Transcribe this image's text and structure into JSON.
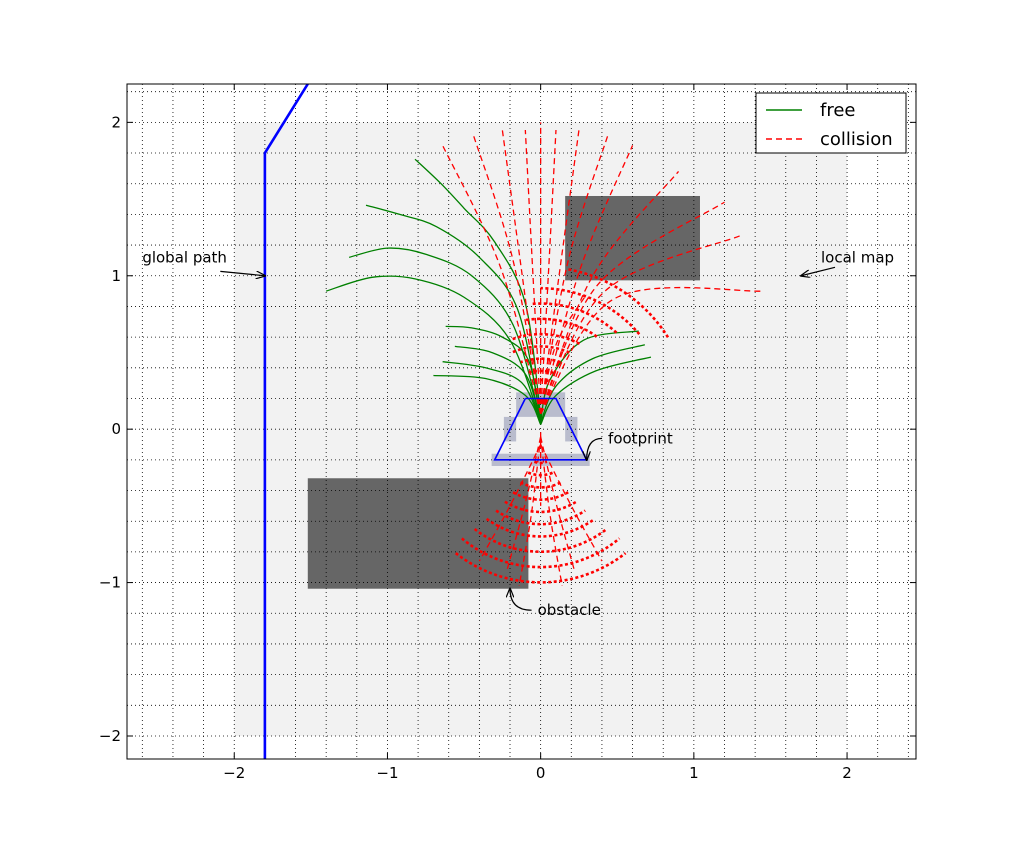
{
  "chart_data": {
    "type": "line",
    "title": "",
    "xlabel": "",
    "ylabel": "",
    "xlim": [
      -2.7,
      2.45
    ],
    "ylim": [
      -2.15,
      2.25
    ],
    "grid": true,
    "grid_style": "dotted",
    "minor_grid_step": 0.2,
    "xticks": [
      -2,
      -1,
      0,
      1,
      2
    ],
    "yticks": [
      -2,
      -1,
      0,
      1,
      2
    ],
    "xtick_labels": [
      "−2",
      "−1",
      "0",
      "1",
      "2"
    ],
    "ytick_labels": [
      "−2",
      "−1",
      "0",
      "1",
      "2"
    ],
    "legend": {
      "position": "top-right",
      "entries": [
        {
          "label": "free",
          "color": "#008000",
          "style": "solid"
        },
        {
          "label": "collision",
          "color": "#ff0000",
          "style": "dashed"
        }
      ]
    },
    "local_map": {
      "x": [
        -2.0,
        2.0
      ],
      "y": [
        -2.0,
        2.0
      ],
      "color": "#f2f2f2"
    },
    "obstacles": [
      {
        "x": [
          0.16,
          1.04
        ],
        "y": [
          0.97,
          1.52
        ],
        "color": "#666666"
      },
      {
        "x": [
          -1.52,
          -0.08
        ],
        "y": [
          -1.04,
          -0.32
        ],
        "color": "#666666"
      }
    ],
    "footprint_cells": [
      {
        "x": [
          -0.16,
          0.16
        ],
        "y": [
          0.08,
          0.24
        ]
      },
      {
        "x": [
          -0.24,
          -0.16
        ],
        "y": [
          -0.08,
          0.08
        ]
      },
      {
        "x": [
          0.16,
          0.24
        ],
        "y": [
          -0.08,
          0.08
        ]
      },
      {
        "x": [
          -0.32,
          0.32
        ],
        "y": [
          -0.24,
          -0.16
        ]
      }
    ],
    "footprint_color": "#b9bccd",
    "footprint": {
      "x": [
        -0.1,
        0.1,
        0.3,
        -0.3,
        -0.1
      ],
      "y": [
        0.2,
        0.2,
        -0.2,
        -0.2,
        0.2
      ],
      "color": "#0000ff"
    },
    "global_path": {
      "x": [
        -1.8,
        -1.8,
        -1.52
      ],
      "y": [
        -2.15,
        1.8,
        2.25
      ],
      "color": "#0000ff"
    },
    "annotations": [
      {
        "text": "global path",
        "text_xy": [
          -2.6,
          1.12
        ],
        "arrow_to": [
          -1.8,
          1.0
        ]
      },
      {
        "text": "local map",
        "text_xy": [
          1.83,
          1.12
        ],
        "arrow_to": [
          1.7,
          1.0
        ]
      },
      {
        "text": "footprint",
        "text_xy": [
          0.44,
          -0.06
        ],
        "arrow_to": [
          0.3,
          -0.2
        ]
      },
      {
        "text": "obstacle",
        "text_xy": [
          -0.02,
          -1.18
        ],
        "arrow_to": [
          -0.2,
          -1.04
        ]
      }
    ],
    "series": [
      {
        "name": "free",
        "color": "#008000",
        "style": "solid",
        "trajectories": [
          {
            "x": [
              0.0,
              -0.2,
              -0.5,
              -0.82,
              -1.1,
              -1.4
            ],
            "y": [
              0.05,
              0.58,
              0.86,
              0.98,
              0.99,
              0.9
            ]
          },
          {
            "x": [
              0.0,
              -0.18,
              -0.45,
              -0.75,
              -1.0,
              -1.25
            ],
            "y": [
              0.06,
              0.68,
              1.0,
              1.14,
              1.18,
              1.12
            ]
          },
          {
            "x": [
              0.0,
              -0.15,
              -0.4,
              -0.68,
              -0.92,
              -1.14
            ],
            "y": [
              0.07,
              0.78,
              1.12,
              1.32,
              1.4,
              1.46
            ]
          },
          {
            "x": [
              0.0,
              -0.1,
              -0.3,
              -0.5,
              -0.65,
              -0.82
            ],
            "y": [
              0.08,
              0.82,
              1.22,
              1.44,
              1.6,
              1.76
            ]
          },
          {
            "x": [
              0.0,
              -0.08,
              -0.25,
              -0.45,
              -0.62
            ],
            "y": [
              0.05,
              0.45,
              0.6,
              0.66,
              0.67
            ]
          },
          {
            "x": [
              0.0,
              -0.1,
              -0.32,
              -0.56
            ],
            "y": [
              0.04,
              0.36,
              0.5,
              0.54
            ]
          },
          {
            "x": [
              0.0,
              -0.12,
              -0.36,
              -0.64
            ],
            "y": [
              0.04,
              0.3,
              0.4,
              0.44
            ]
          },
          {
            "x": [
              0.0,
              -0.1,
              -0.36,
              -0.7
            ],
            "y": [
              0.03,
              0.22,
              0.33,
              0.35
            ]
          },
          {
            "x": [
              0.0,
              0.06,
              0.28,
              0.64
            ],
            "y": [
              0.05,
              0.32,
              0.58,
              0.64
            ]
          },
          {
            "x": [
              0.0,
              0.1,
              0.34,
              0.68
            ],
            "y": [
              0.04,
              0.28,
              0.46,
              0.55
            ]
          },
          {
            "x": [
              0.0,
              0.1,
              0.36,
              0.72
            ],
            "y": [
              0.03,
              0.22,
              0.38,
              0.47
            ]
          }
        ]
      },
      {
        "name": "collision",
        "color": "#ff0000",
        "style": "dashed",
        "trajectories": [
          {
            "x": [
              0.0,
              0.0
            ],
            "y": [
              0.1,
              2.0
            ]
          },
          {
            "x": [
              0.0,
              -0.05,
              -0.1
            ],
            "y": [
              0.1,
              1.0,
              1.95
            ]
          },
          {
            "x": [
              0.0,
              0.05,
              0.1
            ],
            "y": [
              0.1,
              1.0,
              1.95
            ]
          },
          {
            "x": [
              0.0,
              -0.12,
              -0.25
            ],
            "y": [
              0.1,
              1.0,
              1.95
            ]
          },
          {
            "x": [
              0.0,
              0.12,
              0.25
            ],
            "y": [
              0.1,
              1.0,
              1.95
            ]
          },
          {
            "x": [
              0.0,
              -0.18,
              -0.44
            ],
            "y": [
              0.1,
              1.1,
              1.92
            ]
          },
          {
            "x": [
              0.0,
              0.18,
              0.44
            ],
            "y": [
              0.1,
              1.1,
              1.92
            ]
          },
          {
            "x": [
              0.0,
              -0.26,
              -0.64
            ],
            "y": [
              0.1,
              1.05,
              1.85
            ]
          },
          {
            "x": [
              0.0,
              0.26,
              0.6
            ],
            "y": [
              0.1,
              1.05,
              1.85
            ]
          },
          {
            "x": [
              0.0,
              0.34,
              0.9
            ],
            "y": [
              0.1,
              1.0,
              1.68
            ]
          },
          {
            "x": [
              0.0,
              0.38,
              1.2
            ],
            "y": [
              0.1,
              0.95,
              1.48
            ]
          },
          {
            "x": [
              0.0,
              0.42,
              1.3
            ],
            "y": [
              0.1,
              0.9,
              1.26
            ]
          },
          {
            "x": [
              0.0,
              0.48,
              1.45
            ],
            "y": [
              0.1,
              0.85,
              0.9
            ]
          },
          {
            "x": [
              0.0,
              0.1,
              0.3
            ],
            "y": [
              0.1,
              0.55,
              0.88
            ]
          },
          {
            "x": [
              0.0,
              0.0
            ],
            "y": [
              -0.02,
              -0.5
            ]
          },
          {
            "x": [
              0.0,
              -0.1,
              -0.22
            ],
            "y": [
              -0.05,
              -0.48,
              -0.92
            ]
          },
          {
            "x": [
              0.0,
              0.1,
              0.22
            ],
            "y": [
              -0.05,
              -0.48,
              -0.92
            ]
          },
          {
            "x": [
              0.0,
              -0.2,
              -0.4
            ],
            "y": [
              -0.1,
              -0.5,
              -0.86
            ]
          },
          {
            "x": [
              0.0,
              0.2,
              0.4
            ],
            "y": [
              -0.1,
              -0.5,
              -0.86
            ]
          },
          {
            "x": [
              0.0,
              -0.06,
              -0.14
            ],
            "y": [
              -0.05,
              -0.55,
              -1.02
            ]
          },
          {
            "x": [
              0.0,
              0.06,
              0.14
            ],
            "y": [
              -0.05,
              -0.55,
              -1.02
            ]
          }
        ],
        "arcs": [
          {
            "cy": 0.08,
            "r": 0.24,
            "a_from": 78,
            "a_to": 102
          },
          {
            "cy": 0.08,
            "r": 0.3,
            "a_from": 74,
            "a_to": 106
          },
          {
            "cy": 0.08,
            "r": 0.38,
            "a_from": 70,
            "a_to": 110
          },
          {
            "cy": 0.08,
            "r": 0.46,
            "a_from": 66,
            "a_to": 114
          },
          {
            "cy": 0.08,
            "r": 0.54,
            "a_from": 62,
            "a_to": 110
          },
          {
            "cy": 0.08,
            "r": 0.64,
            "a_from": 55,
            "a_to": 100
          },
          {
            "cy": 0.08,
            "r": 0.74,
            "a_from": 48,
            "a_to": 95
          },
          {
            "cy": 0.08,
            "r": 0.84,
            "a_from": 40,
            "a_to": 90
          },
          {
            "cy": 0.08,
            "r": 0.98,
            "a_from": 32,
            "a_to": 80
          },
          {
            "cy": -0.1,
            "r": 0.12,
            "a_from": 250,
            "a_to": 290
          },
          {
            "cy": -0.1,
            "r": 0.2,
            "a_from": 246,
            "a_to": 294
          },
          {
            "cy": -0.1,
            "r": 0.28,
            "a_from": 242,
            "a_to": 298
          },
          {
            "cy": -0.1,
            "r": 0.36,
            "a_from": 240,
            "a_to": 300
          },
          {
            "cy": -0.1,
            "r": 0.44,
            "a_from": 238,
            "a_to": 302
          },
          {
            "cy": -0.1,
            "r": 0.52,
            "a_from": 236,
            "a_to": 304
          },
          {
            "cy": -0.1,
            "r": 0.6,
            "a_from": 234,
            "a_to": 306
          },
          {
            "cy": -0.1,
            "r": 0.7,
            "a_from": 232,
            "a_to": 308
          },
          {
            "cy": -0.1,
            "r": 0.8,
            "a_from": 230,
            "a_to": 310
          },
          {
            "cy": -0.1,
            "r": 0.9,
            "a_from": 232,
            "a_to": 308
          }
        ]
      }
    ]
  }
}
